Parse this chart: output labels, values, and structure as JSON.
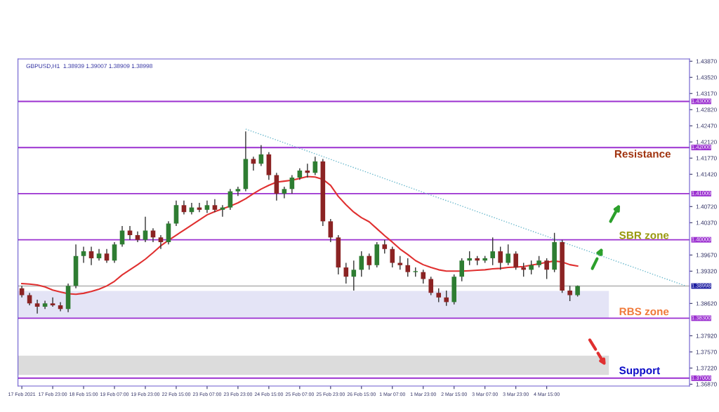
{
  "chart_data": {
    "type": "candlestick",
    "title": "GBPUSD,H1  1.38939 1.39007 1.38909 1.38998",
    "categories": [
      "17 Feb 2021",
      null,
      null,
      null,
      "17 Feb 23:00",
      null,
      null,
      null,
      "18 Feb 15:00",
      null,
      null,
      null,
      "19 Feb 07:00",
      null,
      null,
      null,
      "19 Feb 23:00",
      null,
      null,
      null,
      "22 Feb 15:00",
      null,
      null,
      null,
      "23 Feb 07:00",
      null,
      null,
      null,
      "23 Feb 23:00",
      null,
      null,
      null,
      "24 Feb 15:00",
      null,
      null,
      null,
      "25 Feb 07:00",
      null,
      null,
      null,
      "25 Feb 23:00",
      null,
      null,
      null,
      "26 Feb 15:00",
      null,
      null,
      null,
      "1 Mar 07:00",
      null,
      null,
      null,
      "1 Mar 23:00",
      null,
      null,
      null,
      "2 Mar 15:00",
      null,
      null,
      null,
      "3 Mar 07:00",
      null,
      null,
      null,
      "3 Mar 23:00",
      null,
      null,
      null,
      "4 Mar 15:00",
      null,
      null,
      null,
      null,
      null,
      null,
      null,
      null,
      null,
      null,
      null,
      null,
      null,
      null,
      null,
      null,
      null,
      null
    ],
    "ohlc": [
      [
        1.3895,
        1.39,
        1.3875,
        1.388
      ],
      [
        1.388,
        1.3885,
        1.3858,
        1.3862
      ],
      [
        1.3862,
        1.387,
        1.384,
        1.3855
      ],
      [
        1.3855,
        1.3868,
        1.385,
        1.3862
      ],
      [
        1.3862,
        1.3875,
        1.3855,
        1.3858
      ],
      [
        1.3858,
        1.3865,
        1.3845,
        1.385
      ],
      [
        1.385,
        1.3905,
        1.3843,
        1.39
      ],
      [
        1.39,
        1.399,
        1.3895,
        1.3965
      ],
      [
        1.3965,
        1.3985,
        1.395,
        1.3975
      ],
      [
        1.3975,
        1.3985,
        1.3945,
        1.396
      ],
      [
        1.396,
        1.398,
        1.3955,
        1.397
      ],
      [
        1.397,
        1.398,
        1.395,
        1.3955
      ],
      [
        1.3955,
        1.3995,
        1.395,
        1.399
      ],
      [
        1.399,
        1.403,
        1.3985,
        1.402
      ],
      [
        1.402,
        1.403,
        1.4,
        1.401
      ],
      [
        1.401,
        1.4018,
        1.3995,
        1.4
      ],
      [
        1.4,
        1.405,
        1.3995,
        1.402
      ],
      [
        1.402,
        1.4025,
        1.3995,
        1.4005
      ],
      [
        1.4005,
        1.401,
        1.398,
        1.3995
      ],
      [
        1.3995,
        1.404,
        1.399,
        1.4035
      ],
      [
        1.4035,
        1.4085,
        1.403,
        1.4075
      ],
      [
        1.4075,
        1.4085,
        1.4055,
        1.406
      ],
      [
        1.406,
        1.408,
        1.4055,
        1.407
      ],
      [
        1.407,
        1.408,
        1.406,
        1.4065
      ],
      [
        1.4065,
        1.4085,
        1.4058,
        1.4075
      ],
      [
        1.4075,
        1.4088,
        1.406,
        1.4065
      ],
      [
        1.4065,
        1.4075,
        1.405,
        1.407
      ],
      [
        1.407,
        1.411,
        1.4065,
        1.4105
      ],
      [
        1.4105,
        1.4115,
        1.4095,
        1.411
      ],
      [
        1.411,
        1.4235,
        1.4105,
        1.4175
      ],
      [
        1.4175,
        1.418,
        1.415,
        1.4165
      ],
      [
        1.4165,
        1.4205,
        1.416,
        1.4185
      ],
      [
        1.4185,
        1.419,
        1.413,
        1.414
      ],
      [
        1.414,
        1.4145,
        1.4085,
        1.41
      ],
      [
        1.41,
        1.4115,
        1.409,
        1.411
      ],
      [
        1.411,
        1.414,
        1.41,
        1.4135
      ],
      [
        1.4135,
        1.4155,
        1.413,
        1.415
      ],
      [
        1.415,
        1.4165,
        1.4135,
        1.4145
      ],
      [
        1.4145,
        1.418,
        1.414,
        1.417
      ],
      [
        1.417,
        1.4175,
        1.403,
        1.404
      ],
      [
        1.404,
        1.4045,
        1.3995,
        1.4005
      ],
      [
        1.4005,
        1.401,
        1.3925,
        1.394
      ],
      [
        1.394,
        1.395,
        1.3905,
        1.392
      ],
      [
        1.392,
        1.3955,
        1.389,
        1.3935
      ],
      [
        1.3935,
        1.3975,
        1.392,
        1.3965
      ],
      [
        1.3965,
        1.397,
        1.3935,
        1.3945
      ],
      [
        1.3945,
        1.3995,
        1.394,
        1.399
      ],
      [
        1.399,
        1.4,
        1.397,
        1.398
      ],
      [
        1.398,
        1.3985,
        1.394,
        1.395
      ],
      [
        1.395,
        1.3965,
        1.3935,
        1.3945
      ],
      [
        1.3945,
        1.396,
        1.392,
        1.393
      ],
      [
        1.393,
        1.394,
        1.392,
        1.3932
      ],
      [
        1.393,
        1.3935,
        1.3905,
        1.3915
      ],
      [
        1.3915,
        1.392,
        1.388,
        1.3885
      ],
      [
        1.3885,
        1.3895,
        1.3865,
        1.3875
      ],
      [
        1.3875,
        1.389,
        1.3857,
        1.3865
      ],
      [
        1.3865,
        1.3925,
        1.386,
        1.392
      ],
      [
        1.392,
        1.396,
        1.391,
        1.3955
      ],
      [
        1.3955,
        1.3975,
        1.3945,
        1.396
      ],
      [
        1.396,
        1.3965,
        1.3945,
        1.3955
      ],
      [
        1.3955,
        1.3965,
        1.395,
        1.396
      ],
      [
        1.396,
        1.4005,
        1.3945,
        1.3975
      ],
      [
        1.3975,
        1.3985,
        1.3935,
        1.395
      ],
      [
        1.395,
        1.399,
        1.3945,
        1.397
      ],
      [
        1.397,
        1.3975,
        1.3935,
        1.394
      ],
      [
        1.394,
        1.395,
        1.392,
        1.3935
      ],
      [
        1.3935,
        1.3955,
        1.3925,
        1.3945
      ],
      [
        1.3945,
        1.3965,
        1.394,
        1.3955
      ],
      [
        1.3955,
        1.396,
        1.3915,
        1.3935
      ],
      [
        1.3935,
        1.4015,
        1.393,
        1.3995
      ],
      [
        1.3995,
        1.4,
        1.3885,
        1.389
      ],
      [
        1.389,
        1.39,
        1.3867,
        1.388
      ],
      [
        1.388,
        1.3901,
        1.3877,
        1.38998
      ],
      null,
      null,
      null,
      null,
      null,
      null,
      null,
      null,
      null,
      null,
      null,
      null,
      null,
      null
    ],
    "colors": [
      "#8b2323",
      "#8b2323",
      "#8b2323",
      "#2e7d32",
      "#8b2323",
      "#8b2323",
      "#2e7d32",
      "#2e7d32",
      "#2e7d32",
      "#8b2323",
      "#2e7d32",
      "#8b2323",
      "#2e7d32",
      "#2e7d32",
      "#8b2323",
      "#8b2323",
      "#2e7d32",
      "#8b2323",
      "#8b2323",
      "#2e7d32",
      "#2e7d32",
      "#8b2323",
      "#2e7d32",
      "#8b2323",
      "#2e7d32",
      "#8b2323",
      "#2e7d32",
      "#2e7d32",
      "#2e7d32",
      "#2e7d32",
      "#8b2323",
      "#2e7d32",
      "#8b2323",
      "#8b2323",
      "#2e7d32",
      "#2e7d32",
      "#2e7d32",
      "#8b2323",
      "#2e7d32",
      "#8b2323",
      "#8b2323",
      "#8b2323",
      "#8b2323",
      "#2e7d32",
      "#2e7d32",
      "#8b2323",
      "#2e7d32",
      "#8b2323",
      "#8b2323",
      "#8b2323",
      "#8b2323",
      "#2e7d32",
      "#8b2323",
      "#8b2323",
      "#8b2323",
      "#8b2323",
      "#2e7d32",
      "#2e7d32",
      "#2e7d32",
      "#8b2323",
      "#2e7d32",
      "#2e7d32",
      "#8b2323",
      "#2e7d32",
      "#8b2323",
      "#8b2323",
      "#2e7d32",
      "#2e7d32",
      "#8b2323",
      "#2e7d32",
      "#8b2323",
      "#8b2323",
      "#2e7d32",
      null,
      null,
      null,
      null,
      null,
      null,
      null,
      null,
      null,
      null,
      null,
      null,
      null,
      null
    ],
    "series": [
      {
        "type": "line",
        "color": "#e03030",
        "line_style": "solid",
        "values": [
          1.3905,
          1.3904,
          1.3902,
          1.3898,
          1.3891,
          1.3887,
          1.3883,
          1.3882,
          1.3884,
          1.3888,
          1.3893,
          1.39,
          1.391,
          1.3924,
          1.3935,
          1.3946,
          1.3958,
          1.3972,
          1.3987,
          1.3999,
          1.401,
          1.4021,
          1.4032,
          1.4043,
          1.4054,
          1.4061,
          1.4067,
          1.4073,
          1.408,
          1.4089,
          1.41,
          1.411,
          1.4118,
          1.4125,
          1.4127,
          1.4129,
          1.4133,
          1.4137,
          1.4136,
          1.4131,
          1.4118,
          1.4094,
          1.4076,
          1.406,
          1.4048,
          1.4039,
          1.4024,
          1.4009,
          1.3995,
          1.398,
          1.3968,
          1.3955,
          1.3946,
          1.394,
          1.3935,
          1.3932,
          1.3932,
          1.3932,
          1.3933,
          1.3934,
          1.3935,
          1.3937,
          1.3938,
          1.394,
          1.3941,
          1.3942,
          1.3945,
          1.3948,
          1.3951,
          1.3954,
          1.3952,
          1.3946,
          1.3943,
          null,
          null,
          null,
          null,
          null,
          null,
          null,
          null,
          null,
          null,
          null,
          null,
          null,
          null
        ]
      },
      {
        "type": "line",
        "color": "#6ab8cc",
        "line_style": "dotted",
        "values": [
          null,
          null,
          null,
          null,
          null,
          null,
          null,
          null,
          null,
          null,
          null,
          null,
          null,
          null,
          null,
          null,
          null,
          null,
          null,
          null,
          null,
          null,
          null,
          null,
          null,
          null,
          null,
          null,
          null,
          1.424,
          null,
          null,
          null,
          null,
          null,
          null,
          null,
          null,
          null,
          null,
          null,
          null,
          null,
          null,
          null,
          null,
          null,
          null,
          null,
          null,
          null,
          null,
          null,
          null,
          null,
          null,
          null,
          null,
          null,
          null,
          null,
          null,
          null,
          null,
          null,
          null,
          null,
          null,
          null,
          null,
          null,
          null,
          null,
          null,
          null,
          null,
          null,
          null,
          null,
          null,
          null,
          null,
          null,
          null,
          null,
          null,
          1.39
        ]
      }
    ],
    "ylim": [
      1.3683,
      1.4392
    ],
    "yticks": [
      {
        "value": 1.4387,
        "label": "1.43870"
      },
      {
        "value": 1.4352,
        "label": "1.43520"
      },
      {
        "value": 1.4317,
        "label": "1.43170"
      },
      {
        "value": 1.4282,
        "label": "1.42820"
      },
      {
        "value": 1.4247,
        "label": "1.42470"
      },
      {
        "value": 1.4212,
        "label": "1.42120"
      },
      {
        "value": 1.4177,
        "label": "1.41770"
      },
      {
        "value": 1.4142,
        "label": "1.41420"
      },
      {
        "value": 1.4072,
        "label": "1.40720"
      },
      {
        "value": 1.4037,
        "label": "1.40370"
      },
      {
        "value": 1.3967,
        "label": "1.39670"
      },
      {
        "value": 1.3932,
        "label": "1.39320"
      },
      {
        "value": 1.3862,
        "label": "1.38620"
      },
      {
        "value": 1.3792,
        "label": "1.37920"
      },
      {
        "value": 1.3757,
        "label": "1.37570"
      },
      {
        "value": 1.3722,
        "label": "1.37220"
      },
      {
        "value": 1.3687,
        "label": "1.36870"
      }
    ],
    "ref_lines": [
      {
        "axis": "y",
        "value": 1.43,
        "label": "1.43000",
        "color": "#9b30d0"
      },
      {
        "axis": "y",
        "value": 1.42,
        "label": "1.42000",
        "color": "#9b30d0"
      },
      {
        "axis": "y",
        "value": 1.41,
        "label": "1.41000",
        "color": "#9b30d0"
      },
      {
        "axis": "y",
        "value": 1.4,
        "label": "1.40000",
        "color": "#9b30d0"
      },
      {
        "axis": "y",
        "value": 1.383,
        "label": "1.38300",
        "color": "#9b30d0"
      },
      {
        "axis": "y",
        "value": 1.37,
        "label": "1.37000",
        "color": "#9b30d0"
      },
      {
        "axis": "y",
        "value": 1.38998,
        "label": "1.38998",
        "color": "#b0b0b0"
      }
    ],
    "bands": [
      {
        "axis": "y",
        "from": 1.383,
        "to": 1.3889,
        "color": "#e4e4f6"
      },
      {
        "axis": "y",
        "from": 1.3707,
        "to": 1.3749,
        "color": "#dcdcdc"
      }
    ],
    "annotations": [
      "Resistance",
      "SBR zone",
      "RBS zone",
      "Support"
    ],
    "grid": false,
    "legend": false
  }
}
